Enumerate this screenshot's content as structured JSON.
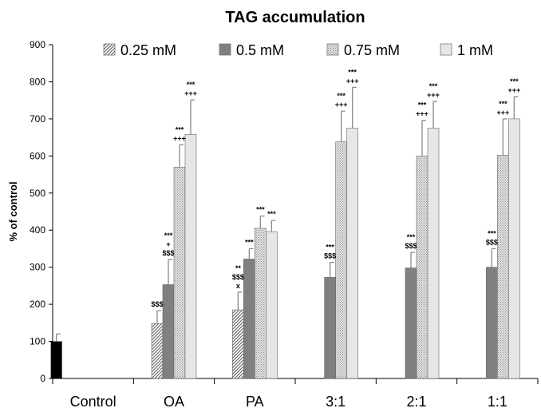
{
  "chart_data": {
    "type": "bar",
    "title": "TAG accumulation",
    "ylabel": "% of control",
    "xlabel": "",
    "ylim": [
      0,
      900
    ],
    "yticks": [
      0,
      100,
      200,
      300,
      400,
      500,
      600,
      700,
      800,
      900
    ],
    "grid": false,
    "legend_position": "top",
    "categories": [
      "Control",
      "OA",
      "PA",
      "3:1",
      "2:1",
      "1:1"
    ],
    "control": {
      "value": 100,
      "error": 20,
      "color": "#000000"
    },
    "series": [
      {
        "name": "0.25 mM",
        "pattern": "diagonal-hatch",
        "color": "#ffffff",
        "values": [
          null,
          148,
          185,
          null,
          null,
          null
        ],
        "errors": [
          null,
          35,
          48,
          null,
          null,
          null
        ],
        "annotations": [
          [],
          [
            "$$$"
          ],
          [
            "**",
            "$$$",
            "x"
          ],
          [],
          [],
          []
        ]
      },
      {
        "name": "0.5 mM",
        "pattern": "solid",
        "color": "#808080",
        "values": [
          null,
          253,
          322,
          273,
          298,
          300
        ],
        "errors": [
          null,
          68,
          28,
          40,
          42,
          50
        ],
        "annotations": [
          [],
          [
            "***",
            "+",
            "$$$"
          ],
          [
            "***"
          ],
          [
            "***",
            "$$$"
          ],
          [
            "***",
            "$$$"
          ],
          [
            "***",
            "$$$"
          ]
        ]
      },
      {
        "name": "0.75 mM",
        "pattern": "dotted",
        "color": "#d9d9d9",
        "values": [
          null,
          570,
          405,
          638,
          600,
          602
        ],
        "errors": [
          null,
          60,
          33,
          83,
          96,
          98
        ],
        "annotations": [
          [],
          [
            "***",
            "+++"
          ],
          [
            "***"
          ],
          [
            "***",
            "+++"
          ],
          [
            "***",
            "+++"
          ],
          [
            "***",
            "+++"
          ]
        ]
      },
      {
        "name": "1 mM",
        "pattern": "solid",
        "color": "#e6e6e6",
        "values": [
          null,
          658,
          396,
          675,
          675,
          700
        ],
        "errors": [
          null,
          93,
          30,
          110,
          72,
          60
        ],
        "annotations": [
          [],
          [
            "***",
            "+++"
          ],
          [
            "***"
          ],
          [
            "***",
            "+++"
          ],
          [
            "***",
            "+++"
          ],
          [
            "***",
            "+++"
          ]
        ]
      }
    ]
  }
}
